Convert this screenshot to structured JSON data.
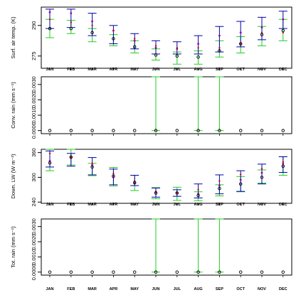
{
  "months": [
    "JAN",
    "FEB",
    "MAR",
    "APR",
    "MAY",
    "JUN",
    "JUL",
    "AUG",
    "SEP",
    "OCT",
    "NOV",
    "DEC"
  ],
  "colors": {
    "blue": "#0000aa",
    "green": "#22cc22",
    "red": "#cc0000",
    "black": "#000000",
    "purple": "#990099"
  },
  "chart_data": [
    {
      "type": "scatter",
      "ylabel": "Surf. air temp. (K)",
      "yticks": [
        "275",
        "290"
      ],
      "tick_values": [
        275,
        290
      ],
      "ylim": [
        269,
        299
      ],
      "blue": [
        [
          288.5,
          298.0
        ],
        [
          289.0,
          298.0
        ],
        [
          285.0,
          296.0
        ],
        [
          281.0,
          290.0
        ],
        [
          278.5,
          286.0
        ],
        [
          276.0,
          282.5
        ],
        [
          276.0,
          282.0
        ],
        [
          276.0,
          285.0
        ],
        [
          277.0,
          289.5
        ],
        [
          279.5,
          292.0
        ],
        [
          283.0,
          294.0
        ],
        [
          288.5,
          297.0
        ]
      ],
      "green": [
        [
          284.0,
          293.0
        ],
        [
          286.0,
          292.5
        ],
        [
          282.0,
          288.5
        ],
        [
          280.0,
          285.5
        ],
        [
          276.5,
          282.5
        ],
        [
          273.0,
          278.5
        ],
        [
          271.0,
          277.0
        ],
        [
          271.0,
          277.5
        ],
        [
          274.5,
          282.5
        ],
        [
          276.5,
          284.5
        ],
        [
          280.0,
          289.5
        ],
        [
          282.5,
          293.0
        ]
      ],
      "red": [
        293.0,
        291.5,
        290.0,
        287.5,
        283.5,
        280.0,
        279.0,
        279.0,
        279.0,
        281.0,
        286.5,
        286.5
      ],
      "black": [
        288.5,
        288.5,
        286.5,
        283.5,
        279.5,
        275.5,
        275.0,
        274.5,
        277.5,
        281.0,
        285.5,
        287.5
      ],
      "purple": [
        296.5,
        296.0,
        292.0,
        287.5,
        282.5,
        279.0,
        278.5,
        281.0,
        285.0,
        286.5,
        289.0,
        293.0
      ]
    },
    {
      "type": "scatter",
      "ylabel": "Conv. rain (mm s⁻¹)",
      "yticks": [
        "0.0000",
        "0.0010",
        "0.0020",
        "0.0030"
      ],
      "tick_values": [
        0.0,
        0.001,
        0.002,
        0.003
      ],
      "ylim": [
        -0.0002,
        0.0035
      ],
      "green": [
        null,
        null,
        null,
        null,
        null,
        [
          0.0,
          0.0035
        ],
        null,
        [
          0.0,
          0.0035
        ],
        [
          0.0,
          0.0035
        ],
        null,
        null,
        null
      ],
      "black": [
        0,
        0,
        0,
        0,
        0,
        0,
        0,
        0,
        0,
        0,
        0,
        0
      ]
    },
    {
      "type": "scatter",
      "ylabel": "Down. LW (W m⁻²)",
      "yticks": [
        "240",
        "300",
        "360"
      ],
      "tick_values": [
        240,
        300,
        360
      ],
      "ylim": [
        237,
        368
      ],
      "blue": [
        [
          325.0,
          364.0
        ],
        [
          327.0,
          358.0
        ],
        [
          306.0,
          348.0
        ],
        [
          282.0,
          320.0
        ],
        [
          280.0,
          305.0
        ],
        [
          252.0,
          274.0
        ],
        [
          254.0,
          270.0
        ],
        [
          250.0,
          284.0
        ],
        [
          260.0,
          306.0
        ],
        [
          266.0,
          316.0
        ],
        [
          284.0,
          332.0
        ],
        [
          312.0,
          350.0
        ]
      ],
      "green": [
        [
          316.0,
          368.0
        ],
        [
          330.0,
          368.0
        ],
        [
          304.0,
          334.0
        ],
        [
          279.0,
          324.0
        ],
        [
          268.0,
          305.0
        ],
        [
          248.0,
          275.0
        ],
        [
          244.0,
          276.0
        ],
        [
          243.0,
          265.0
        ],
        [
          255.0,
          282.0
        ],
        [
          265.0,
          302.0
        ],
        [
          286.0,
          318.0
        ],
        [
          305.0,
          350.0
        ]
      ],
      "red": [
        358.0,
        349.0,
        334.0,
        309.0,
        291.0,
        266.0,
        263.0,
        270.0,
        291.0,
        307.0,
        321.0,
        337.0
      ],
      "black": [
        335.0,
        349.0,
        325.0,
        303.0,
        287.0,
        262.0,
        262.0,
        256.0,
        273.0,
        284.0,
        300.0,
        327.0
      ],
      "purple": [
        340.0,
        347.0,
        330.0,
        300.0,
        286.0,
        264.0,
        263.0,
        260.0,
        280.0,
        294.0,
        311.0,
        333.0
      ]
    },
    {
      "type": "scatter",
      "ylabel": "Tot. rain (mm s⁻¹)",
      "yticks": [
        "0.0000",
        "0.0010",
        "0.0020",
        "0.0030"
      ],
      "tick_values": [
        0.0,
        0.001,
        0.002,
        0.003
      ],
      "ylim": [
        -0.0002,
        0.0035
      ],
      "green": [
        null,
        null,
        null,
        null,
        null,
        [
          0.0,
          0.0035
        ],
        null,
        [
          0.0,
          0.0035
        ],
        [
          0.0,
          0.0035
        ],
        null,
        null,
        null
      ],
      "black": [
        0,
        0,
        0,
        0,
        0,
        0,
        0,
        0,
        0,
        0,
        0,
        0
      ]
    }
  ]
}
